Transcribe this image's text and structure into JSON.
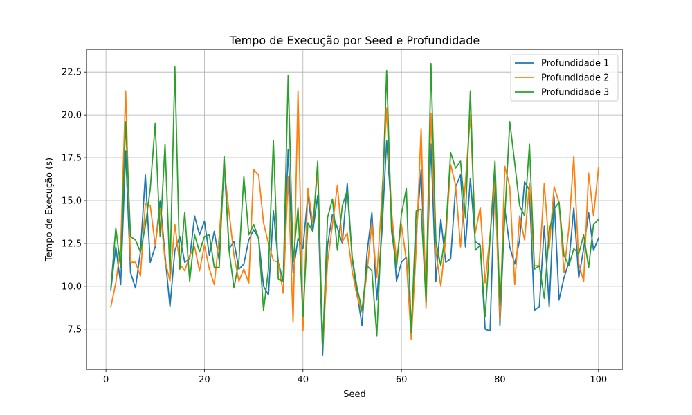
{
  "chart_data": {
    "type": "line",
    "title": "Tempo de Execução por Seed e Profundidade",
    "xlabel": "Seed",
    "ylabel": "Tempo de Execução (s)",
    "xlim": [
      -3.95,
      104.95
    ],
    "ylim": [
      5.15,
      23.8
    ],
    "xticks": [
      0,
      20,
      40,
      60,
      80,
      100
    ],
    "xtick_labels": [
      "0",
      "20",
      "40",
      "60",
      "80",
      "100"
    ],
    "yticks": [
      7.5,
      10.0,
      12.5,
      15.0,
      17.5,
      20.0,
      22.5
    ],
    "ytick_labels": [
      "7.5",
      "10.0",
      "12.5",
      "15.0",
      "17.5",
      "20.0",
      "22.5"
    ],
    "grid": true,
    "legend_position": "top-right",
    "x": [
      1,
      2,
      3,
      4,
      5,
      6,
      7,
      8,
      9,
      10,
      11,
      12,
      13,
      14,
      15,
      16,
      17,
      18,
      19,
      20,
      21,
      22,
      23,
      24,
      25,
      26,
      27,
      28,
      29,
      30,
      31,
      32,
      33,
      34,
      35,
      36,
      37,
      38,
      39,
      40,
      41,
      42,
      43,
      44,
      45,
      46,
      47,
      48,
      49,
      50,
      51,
      52,
      53,
      54,
      55,
      56,
      57,
      58,
      59,
      60,
      61,
      62,
      63,
      64,
      65,
      66,
      67,
      68,
      69,
      70,
      71,
      72,
      73,
      74,
      75,
      76,
      77,
      78,
      79,
      80,
      81,
      82,
      83,
      84,
      85,
      86,
      87,
      88,
      89,
      90,
      91,
      92,
      93,
      94,
      95,
      96,
      97,
      98,
      99,
      100
    ],
    "series": [
      {
        "name": "Profundidade 1",
        "color": "#1f77b4",
        "values": [
          9.8,
          12.3,
          10.1,
          17.9,
          10.8,
          9.9,
          12.0,
          16.5,
          11.4,
          12.3,
          15.0,
          11.8,
          8.8,
          12.1,
          12.9,
          11.4,
          11.6,
          14.1,
          13.0,
          13.8,
          11.8,
          13.2,
          11.5,
          17.2,
          12.2,
          12.6,
          11.0,
          11.3,
          12.7,
          13.3,
          12.8,
          10.0,
          9.5,
          14.4,
          11.4,
          10.3,
          18.0,
          10.8,
          12.8,
          12.2,
          15.3,
          13.2,
          15.3,
          6.0,
          12.4,
          14.2,
          13.4,
          12.5,
          16.0,
          11.6,
          9.6,
          7.7,
          11.9,
          14.3,
          9.2,
          13.0,
          18.5,
          14.3,
          10.3,
          11.4,
          11.7,
          7.4,
          13.0,
          16.8,
          9.5,
          18.3,
          10.3,
          13.9,
          11.4,
          11.6,
          15.8,
          16.5,
          12.3,
          16.3,
          12.6,
          12.4,
          7.5,
          7.4,
          16.6,
          7.7,
          14.5,
          12.3,
          11.3,
          12.7,
          16.1,
          15.6,
          8.6,
          8.8,
          13.5,
          8.8,
          15.2,
          9.2,
          10.5,
          11.4,
          14.6,
          10.5,
          12.2,
          14.3,
          12.1,
          12.8
        ]
      },
      {
        "name": "Profundidade 2",
        "color": "#ff7f0e",
        "values": [
          8.8,
          10.2,
          12.3,
          21.4,
          11.4,
          11.4,
          10.6,
          14.8,
          14.7,
          12.4,
          14.5,
          11.5,
          10.3,
          13.6,
          11.3,
          10.9,
          11.8,
          12.3,
          10.9,
          12.4,
          11.0,
          10.1,
          12.9,
          16.9,
          14.3,
          11.8,
          10.3,
          11.0,
          10.2,
          16.8,
          16.5,
          13.7,
          12.5,
          11.5,
          11.4,
          9.6,
          16.4,
          7.9,
          21.4,
          7.4,
          15.7,
          13.7,
          16.7,
          6.5,
          11.4,
          13.6,
          15.9,
          12.6,
          13.1,
          10.9,
          9.4,
          8.5,
          10.8,
          13.7,
          10.5,
          15.1,
          20.4,
          14.3,
          11.5,
          13.6,
          11.5,
          6.9,
          12.2,
          19.2,
          8.7,
          20.1,
          12.0,
          10.0,
          12.8,
          17.1,
          15.9,
          12.3,
          16.1,
          20.0,
          13.1,
          14.6,
          10.2,
          13.0,
          16.1,
          8.0,
          17.0,
          15.8,
          10.1,
          14.1,
          12.7,
          16.0,
          11.2,
          11.2,
          16.0,
          12.2,
          15.8,
          14.9,
          10.8,
          13.4,
          17.6,
          11.3,
          10.3,
          16.6,
          14.1,
          16.9
        ]
      },
      {
        "name": "Profundidade 3",
        "color": "#2ca02c",
        "values": [
          9.9,
          13.4,
          11.1,
          19.6,
          12.9,
          12.7,
          12.0,
          13.5,
          15.7,
          19.5,
          12.9,
          18.3,
          10.7,
          22.8,
          11.0,
          14.3,
          10.3,
          13.0,
          12.0,
          12.9,
          13.0,
          11.1,
          11.1,
          17.6,
          12.1,
          9.9,
          11.5,
          16.4,
          13.0,
          13.6,
          12.8,
          8.6,
          11.0,
          18.5,
          10.4,
          10.3,
          22.3,
          11.4,
          14.6,
          8.2,
          13.7,
          13.2,
          17.3,
          6.4,
          14.0,
          15.1,
          12.1,
          14.7,
          15.6,
          11.7,
          9.9,
          8.6,
          11.2,
          10.9,
          7.1,
          13.7,
          22.6,
          13.2,
          11.1,
          14.2,
          15.7,
          7.3,
          14.4,
          14.5,
          9.1,
          23.0,
          12.6,
          11.2,
          13.2,
          17.8,
          16.9,
          17.3,
          14.0,
          21.4,
          12.1,
          12.4,
          8.2,
          12.8,
          17.3,
          8.9,
          14.1,
          19.6,
          17.2,
          14.7,
          14.1,
          18.3,
          11.0,
          11.2,
          9.3,
          13.2,
          14.5,
          14.9,
          11.8,
          11.2,
          12.2,
          11.9,
          13.0,
          11.1,
          13.6,
          13.9
        ]
      }
    ]
  }
}
